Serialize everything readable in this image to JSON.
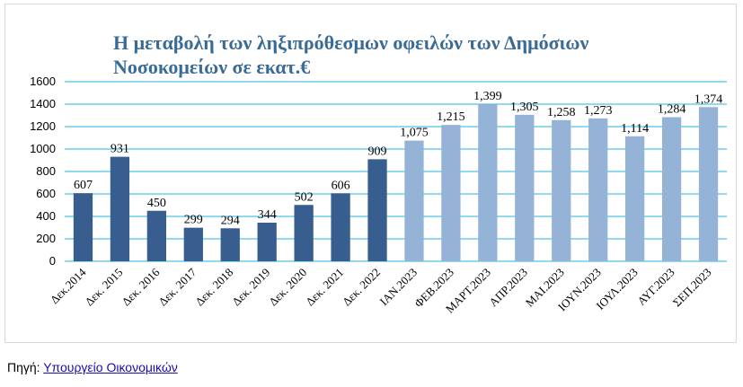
{
  "chart_data": {
    "type": "bar",
    "title_lines": [
      "Η μεταβολή των ληξιπρόθεσμων οφειλών των Δημόσιων",
      "Νοσοκομείων σε εκατ.€"
    ],
    "categories": [
      "Δεκ.2014",
      "Δεκ. 2015",
      "Δεκ. 2016",
      "Δεκ. 2017",
      "Δεκ. 2018",
      "Δεκ. 2019",
      "Δεκ. 2020",
      "Δεκ. 2021",
      "Δεκ. 2022",
      "ΙΑΝ.2023",
      "ΦΕΒ.2023",
      "ΜΑΡΤ.2023",
      "ΑΠΡ.2023",
      "ΜΑΙ.2023",
      "ΙΟΥΝ.2023",
      "ΙΟΥΛ.2023",
      "ΑΥΓ.2023",
      "ΣΕΠ.2023"
    ],
    "values": [
      607,
      931,
      450,
      299,
      294,
      344,
      502,
      606,
      909,
      1075,
      1215,
      1399,
      1305,
      1258,
      1273,
      1114,
      1284,
      1374
    ],
    "value_labels": [
      "607",
      "931",
      "450",
      "299",
      "294",
      "344",
      "502",
      "606",
      "909",
      "1,075",
      "1,215",
      "1,399",
      "1,305",
      "1,258",
      "1,273",
      "1,114",
      "1,284",
      "1,374"
    ],
    "yticks": [
      "0",
      "200",
      "400",
      "600",
      "800",
      "1000",
      "1200",
      "1400",
      "1600"
    ],
    "ylim": [
      0,
      1600
    ],
    "grid": true,
    "colors": {
      "annual": "#375e8f",
      "monthly": "#95b3d7",
      "grid": "#23b6e6",
      "title": "#3a6b96"
    },
    "annual_count": 9
  },
  "source": {
    "label": "Πηγή: ",
    "link_text": "Υπουργείο Οικονομικών"
  }
}
